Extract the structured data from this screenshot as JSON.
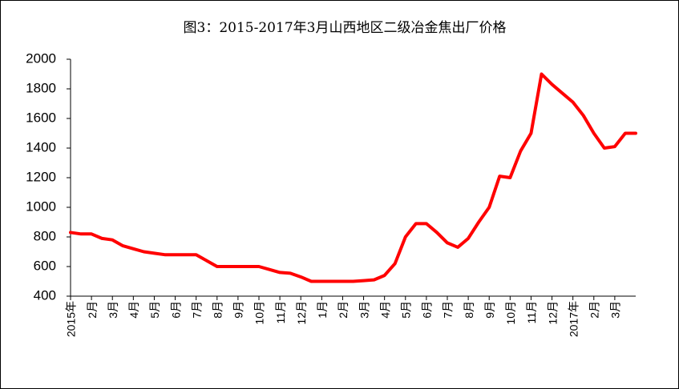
{
  "chart_data": {
    "type": "line",
    "title": "图3：2015-2017年3月山西地区二级冶金焦出厂价格",
    "categories": [
      "2015年",
      null,
      "2月",
      null,
      "3月",
      null,
      "4月",
      null,
      "5月",
      null,
      "6月",
      null,
      "7月",
      null,
      "8月",
      null,
      "9月",
      null,
      "10月",
      null,
      "11月",
      null,
      "12月",
      null,
      "1月",
      null,
      "2月",
      null,
      "3月",
      null,
      "4月",
      null,
      "5月",
      null,
      "6月",
      null,
      "7月",
      null,
      "8月",
      null,
      "9月",
      null,
      "10月",
      null,
      "11月",
      null,
      "12月",
      null,
      "2017年",
      null,
      "2月",
      null,
      "3月",
      null,
      null
    ],
    "series": [
      {
        "name": "二级冶金焦出厂价格",
        "color": "#ff0000",
        "values": [
          830,
          820,
          820,
          790,
          780,
          740,
          720,
          700,
          690,
          680,
          680,
          680,
          680,
          640,
          600,
          600,
          600,
          600,
          600,
          580,
          560,
          555,
          530,
          500,
          500,
          500,
          500,
          500,
          505,
          510,
          540,
          620,
          800,
          890,
          890,
          830,
          760,
          730,
          790,
          900,
          1000,
          1210,
          1200,
          1380,
          1500,
          1900,
          1830,
          1770,
          1710,
          1620,
          1500,
          1400,
          1410,
          1500,
          1500
        ]
      }
    ],
    "ylim": [
      400,
      2000
    ],
    "yticks": [
      400,
      600,
      800,
      1000,
      1200,
      1400,
      1600,
      1800,
      2000
    ],
    "grid": false,
    "legend": false
  }
}
